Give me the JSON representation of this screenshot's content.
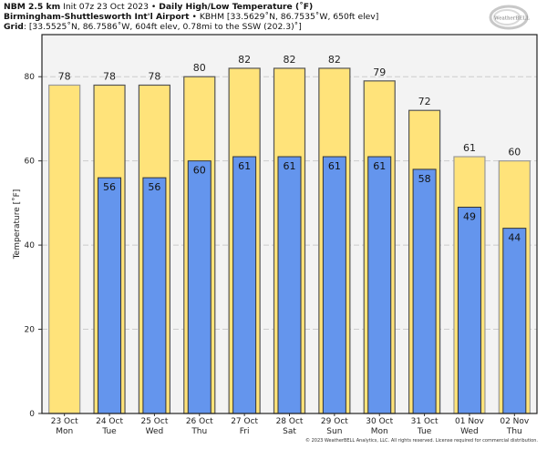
{
  "header": {
    "line1_bold_model": "NBM 2.5 km",
    "line1_init": "Init 07z 23 Oct 2023",
    "line1_sep": " • ",
    "line1_bold_title": "Daily High/Low Temperature (˚F)",
    "line2_bold_station": "Birmingham-Shuttlesworth Int'l Airport",
    "line2_sep": " • ",
    "line2_detail": "KBHM [33.5629˚N, 86.7535˚W, 650ft elev]",
    "line3_bold": "Grid",
    "line3_detail": ": [33.5525˚N, 86.7586˚W, 604ft elev, 0.78mi to the SSW (202.3)˚]"
  },
  "logo": {
    "text": "WeatherBELL",
    "icon": "weatherbell-swirl-logo"
  },
  "copyright": "© 2023 WeatherBELL Analytics, LLC. All rights reserved. License required for commercial distribution.",
  "colors": {
    "high_fill": "#FFE37A",
    "low_fill": "#6495ED",
    "plot_bg": "#F3F3F3",
    "bar_edge": "#555555",
    "bar_edge_partial": "#999999",
    "grid": "#CCCCCC"
  },
  "chart_data": {
    "type": "bar",
    "title": "Daily High/Low Temperature (˚F)",
    "xlabel": "",
    "ylabel": "Temperature [˚F]",
    "ylim": [
      0,
      90
    ],
    "yticks": [
      0,
      20,
      40,
      60,
      80
    ],
    "grid": true,
    "categories": [
      [
        "23 Oct",
        "Mon"
      ],
      [
        "24 Oct",
        "Tue"
      ],
      [
        "25 Oct",
        "Wed"
      ],
      [
        "26 Oct",
        "Thu"
      ],
      [
        "27 Oct",
        "Fri"
      ],
      [
        "28 Oct",
        "Sat"
      ],
      [
        "29 Oct",
        "Sun"
      ],
      [
        "30 Oct",
        "Mon"
      ],
      [
        "31 Oct",
        "Tue"
      ],
      [
        "01 Nov",
        "Wed"
      ],
      [
        "02 Nov",
        "Thu"
      ]
    ],
    "series": [
      {
        "name": "High",
        "values": [
          78,
          78,
          78,
          80,
          82,
          82,
          82,
          79,
          72,
          61,
          60
        ],
        "labels": [
          "78",
          "78",
          "78",
          "80",
          "82",
          "82",
          "82",
          "79",
          "72",
          "61",
          "60"
        ]
      },
      {
        "name": "Low",
        "values": [
          null,
          56,
          56,
          60,
          61,
          61,
          61,
          61,
          58,
          49,
          44
        ],
        "labels": [
          null,
          "56",
          "56",
          "60",
          "61",
          "61",
          "61",
          "61",
          "58",
          "49",
          "44"
        ]
      }
    ],
    "partial_days": [
      0,
      9,
      10
    ]
  }
}
